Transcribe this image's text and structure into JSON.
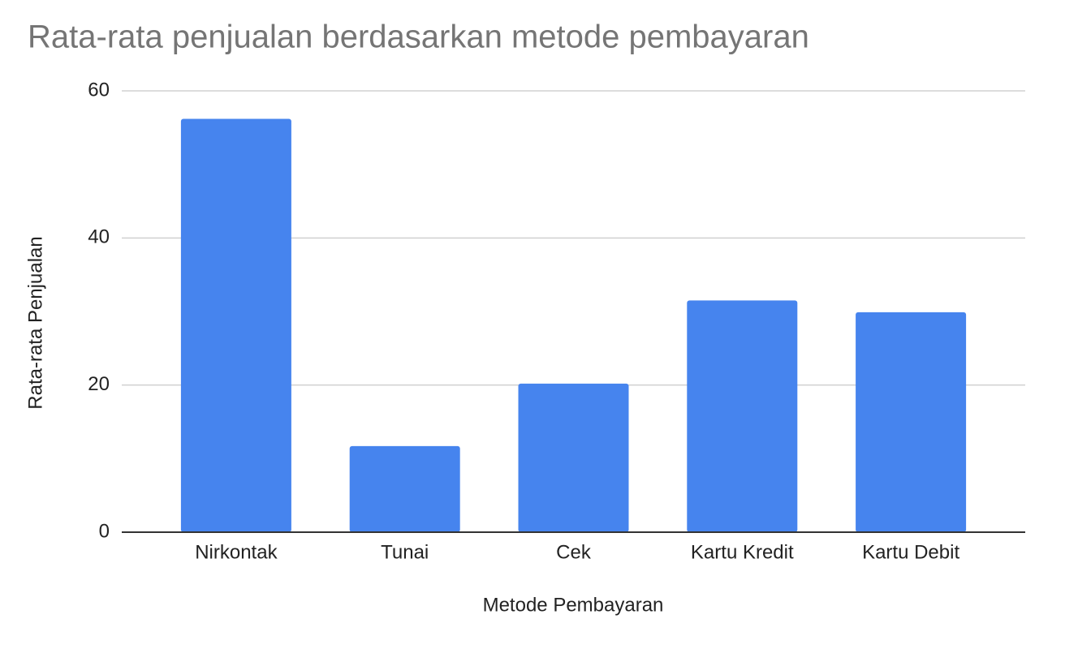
{
  "chart_data": {
    "type": "bar",
    "title": "Rata-rata penjualan berdasarkan metode pembayaran",
    "x_label": "Metode Pembayaran",
    "y_label": "Rata-rata Penjualan",
    "categories": [
      "Nirkontak",
      "Tunai",
      "Cek",
      "Kartu Kredit",
      "Kartu Debit"
    ],
    "values": [
      56.2,
      11.7,
      20.2,
      31.5,
      29.9
    ],
    "color": "#4684ee",
    "ylim": [
      0,
      60
    ],
    "yticks": [
      0,
      20,
      40,
      60
    ],
    "grid": true
  }
}
